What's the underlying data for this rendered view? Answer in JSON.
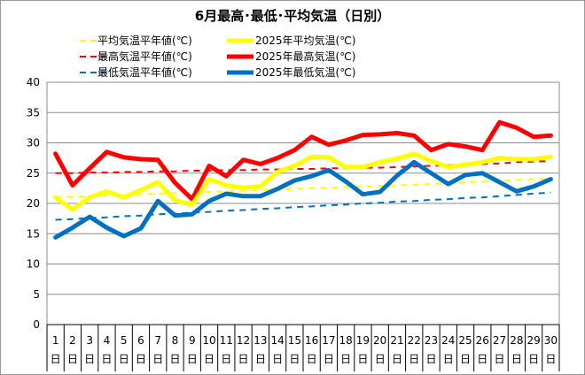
{
  "chart_data": {
    "type": "line",
    "title": "6月最高･最低･平均気温（日別）",
    "xlabel": "",
    "ylabel": "",
    "ylim": [
      0,
      40
    ],
    "yticks": [
      0,
      5,
      10,
      15,
      20,
      25,
      30,
      35,
      40
    ],
    "grid": true,
    "legend_position": "top",
    "x_day_suffix": "日",
    "x": [
      1,
      2,
      3,
      4,
      5,
      6,
      7,
      8,
      9,
      10,
      11,
      12,
      13,
      14,
      15,
      16,
      17,
      18,
      19,
      20,
      21,
      22,
      23,
      24,
      25,
      26,
      27,
      28,
      29,
      30
    ],
    "series": [
      {
        "name": "平均気温平年値(℃)",
        "color": "#ffff00",
        "style": "dashed",
        "values": [
          21.0,
          21.1,
          21.2,
          21.3,
          21.4,
          21.5,
          21.6,
          21.7,
          21.8,
          21.9,
          22.0,
          22.1,
          22.2,
          22.3,
          22.4,
          22.5,
          22.6,
          22.7,
          22.8,
          22.9,
          23.0,
          23.1,
          23.2,
          23.3,
          23.5,
          23.6,
          23.7,
          23.9,
          24.0,
          24.1
        ]
      },
      {
        "name": "最高気温平年値(℃)",
        "color": "#ff0000",
        "style": "dashed",
        "values": [
          25.0,
          25.0,
          25.1,
          25.1,
          25.2,
          25.2,
          25.3,
          25.3,
          25.4,
          25.4,
          25.5,
          25.5,
          25.6,
          25.6,
          25.7,
          25.7,
          25.8,
          25.8,
          25.9,
          25.9,
          26.0,
          26.1,
          26.2,
          26.3,
          26.4,
          26.5,
          26.6,
          26.8,
          26.9,
          27.0
        ]
      },
      {
        "name": "最低気温平年値(℃)",
        "color": "#0070c0",
        "style": "dashed",
        "values": [
          17.3,
          17.4,
          17.6,
          17.7,
          17.9,
          18.0,
          18.2,
          18.3,
          18.5,
          18.6,
          18.8,
          18.9,
          19.1,
          19.2,
          19.4,
          19.5,
          19.7,
          19.8,
          20.0,
          20.1,
          20.3,
          20.4,
          20.6,
          20.7,
          20.9,
          21.0,
          21.2,
          21.4,
          21.6,
          21.8
        ]
      },
      {
        "name": "2025年平均気温(℃)",
        "color": "#ffff00",
        "style": "solid",
        "values": [
          21.0,
          19.0,
          21.0,
          22.0,
          21.0,
          22.2,
          23.5,
          20.5,
          19.8,
          24.0,
          23.0,
          22.6,
          22.8,
          25.2,
          26.2,
          27.7,
          27.6,
          26.0,
          26.0,
          26.8,
          27.4,
          28.2,
          27.0,
          26.0,
          26.4,
          26.8,
          27.5,
          27.3,
          27.3,
          27.7
        ]
      },
      {
        "name": "2025年最高気温(℃)",
        "color": "#ff0000",
        "style": "solid",
        "values": [
          28.2,
          23.0,
          25.8,
          28.5,
          27.6,
          27.3,
          27.2,
          23.4,
          20.7,
          26.2,
          24.5,
          27.2,
          26.5,
          27.5,
          28.8,
          31.0,
          29.7,
          30.4,
          31.3,
          31.4,
          31.6,
          31.2,
          28.8,
          29.8,
          29.4,
          28.8,
          33.4,
          32.5,
          31.0,
          31.2
        ]
      },
      {
        "name": "2025年最低気温(℃)",
        "color": "#0070c0",
        "style": "solid",
        "values": [
          14.4,
          16.0,
          17.8,
          16.0,
          14.6,
          15.9,
          20.4,
          18.0,
          18.2,
          20.4,
          21.6,
          21.2,
          21.2,
          22.4,
          23.8,
          24.5,
          25.5,
          23.6,
          21.5,
          21.9,
          24.6,
          26.8,
          25.0,
          23.2,
          24.7,
          25.0,
          23.5,
          22.0,
          22.8,
          24.0
        ]
      }
    ]
  }
}
